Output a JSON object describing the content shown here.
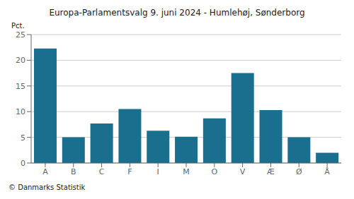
{
  "chart_data": {
    "type": "bar",
    "title": "Europa-Parlamentsvalg 9. juni 2024 - Humlehøj, Sønderborg",
    "ylabel": "Pct.",
    "footer": "© Danmarks Statistik",
    "categories": [
      "A",
      "B",
      "C",
      "F",
      "I",
      "M",
      "O",
      "V",
      "Æ",
      "Ø",
      "Å"
    ],
    "values": [
      22.3,
      5.0,
      7.7,
      10.5,
      6.3,
      5.1,
      8.7,
      17.5,
      10.3,
      5.0,
      2.0
    ],
    "color": "#1a6e8e",
    "ylim": [
      0,
      25
    ],
    "yticks": [
      0,
      5,
      10,
      15,
      20,
      25
    ],
    "grid": true
  }
}
